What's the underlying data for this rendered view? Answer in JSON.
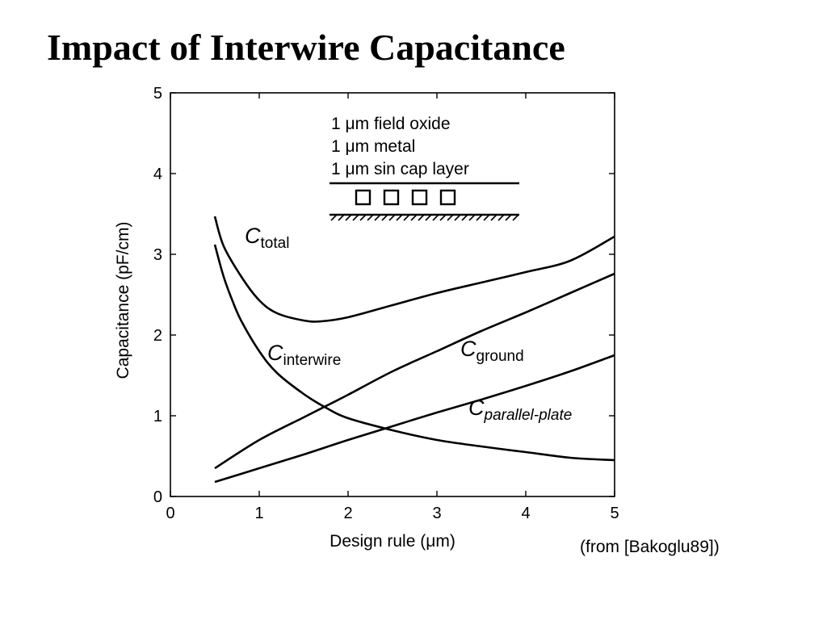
{
  "slide": {
    "title": "Impact of Interwire Capacitance",
    "source_note": "(from [Bakoglu89])"
  },
  "chart_data": {
    "type": "line",
    "xlabel": "Design rule (μm)",
    "ylabel": "Capacitance (pF/cm)",
    "xlim": [
      0,
      5
    ],
    "ylim": [
      0,
      5
    ],
    "xticks": [
      "0",
      "1",
      "2",
      "3",
      "4",
      "5"
    ],
    "yticks": [
      "0",
      "1",
      "2",
      "3",
      "4",
      "5"
    ],
    "grid": false,
    "legend_box": {
      "lines": [
        "1 μm field oxide",
        "1 μm metal",
        "1 μm sin cap layer"
      ]
    },
    "series": [
      {
        "name": "C_total",
        "label_main": "C",
        "label_sub": "total",
        "x": [
          0.5,
          0.6,
          0.8,
          1.0,
          1.2,
          1.5,
          1.7,
          2.0,
          2.5,
          3.0,
          3.5,
          4.0,
          4.5,
          5.0
        ],
        "y": [
          3.47,
          3.1,
          2.72,
          2.43,
          2.27,
          2.18,
          2.17,
          2.22,
          2.37,
          2.52,
          2.65,
          2.78,
          2.92,
          3.22
        ]
      },
      {
        "name": "C_interwire",
        "label_main": "C",
        "label_sub": "interwire",
        "x": [
          0.5,
          0.6,
          0.7,
          0.8,
          1.0,
          1.2,
          1.5,
          1.75,
          2.0,
          2.5,
          3.0,
          3.5,
          4.0,
          4.5,
          5.0
        ],
        "y": [
          3.12,
          2.72,
          2.42,
          2.17,
          1.8,
          1.53,
          1.27,
          1.1,
          0.97,
          0.82,
          0.7,
          0.62,
          0.55,
          0.48,
          0.45
        ]
      },
      {
        "name": "C_ground",
        "label_main": "C",
        "label_sub": "ground",
        "x": [
          0.5,
          1.0,
          1.5,
          1.75,
          2.0,
          2.5,
          3.0,
          3.5,
          4.0,
          4.5,
          5.0
        ],
        "y": [
          0.35,
          0.7,
          0.98,
          1.12,
          1.26,
          1.55,
          1.8,
          2.05,
          2.28,
          2.52,
          2.76
        ]
      },
      {
        "name": "C_parallel-plate",
        "label_main": "C",
        "label_sub": "parallel-plate",
        "x": [
          0.5,
          1.0,
          1.5,
          2.0,
          2.5,
          3.0,
          3.5,
          4.0,
          4.5,
          5.0
        ],
        "y": [
          0.18,
          0.35,
          0.52,
          0.7,
          0.87,
          1.04,
          1.2,
          1.37,
          1.55,
          1.75
        ]
      }
    ]
  }
}
